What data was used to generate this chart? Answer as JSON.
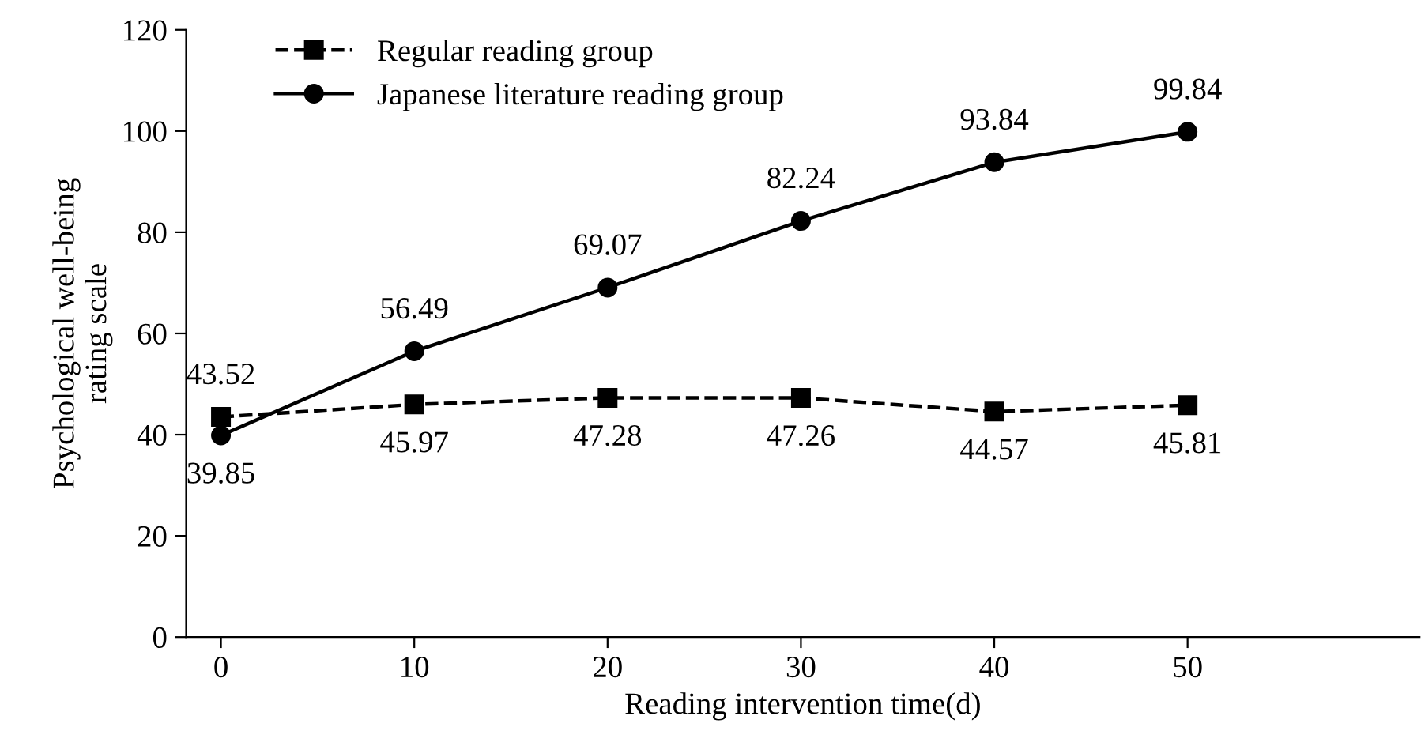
{
  "chart_data": {
    "type": "line",
    "xlabel": "Reading intervention time(d)",
    "ylabel": "Psychological well-being\nrating scale",
    "x": [
      0,
      10,
      20,
      30,
      40,
      50
    ],
    "series": [
      {
        "name": "Regular reading group",
        "color": "#000000",
        "values": [
          43.52,
          45.97,
          47.28,
          47.26,
          44.57,
          45.81
        ],
        "marker": "square",
        "line_style": "dashed"
      },
      {
        "name": "Japanese literature reading group",
        "color": "#000000",
        "values": [
          39.85,
          56.49,
          69.07,
          82.24,
          93.84,
          99.84
        ],
        "marker": "circle",
        "line_style": "solid"
      }
    ],
    "xlim": [
      -1.8,
      62
    ],
    "xticks": [
      0,
      10,
      20,
      30,
      40,
      50
    ],
    "ylim": [
      0,
      120
    ],
    "yticks": [
      0,
      20,
      40,
      60,
      80,
      100,
      120
    ],
    "data_labels": true,
    "grid": false,
    "legend": "top left"
  }
}
